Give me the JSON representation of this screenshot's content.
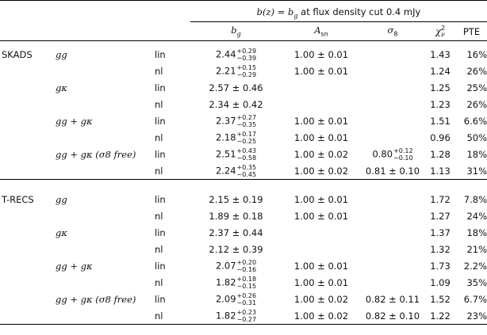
{
  "header": {
    "span_title_pre": "b(z) = b",
    "span_title_sub": "g",
    "span_title_post": " at flux density cut 0.4 mJy",
    "columns": {
      "bg": "b",
      "bg_sub": "g",
      "asn": "A",
      "asn_sub": "sn",
      "sigma8": "σ",
      "sigma8_sub": "8",
      "chi": "χ",
      "chi_sup": "2",
      "chi_sub": "ν",
      "pte": "PTE"
    }
  },
  "sections": [
    {
      "name": "SKADS",
      "rows": [
        {
          "model": "gg",
          "fit": "lin",
          "bg": {
            "v": "2.44",
            "up": "+0.29",
            "dn": "−0.39"
          },
          "asn": "1.00 ± 0.01",
          "sigma8": "",
          "chi": "1.43",
          "pte": "16%"
        },
        {
          "model": "",
          "fit": "nl",
          "bg": {
            "v": "2.21",
            "up": "+0.15",
            "dn": "−0.29"
          },
          "asn": "1.00 ± 0.01",
          "sigma8": "",
          "chi": "1.24",
          "pte": "26%"
        },
        {
          "model": "gκ",
          "fit": "lin",
          "bg": {
            "v": "2.57 ± 0.46"
          },
          "asn": "",
          "sigma8": "",
          "chi": "1.25",
          "pte": "25%"
        },
        {
          "model": "",
          "fit": "nl",
          "bg": {
            "v": "2.34 ± 0.42"
          },
          "asn": "",
          "sigma8": "",
          "chi": "1.23",
          "pte": "26%"
        },
        {
          "model": "gg + gκ",
          "fit": "lin",
          "bg": {
            "v": "2.37",
            "up": "+0.27",
            "dn": "−0.35"
          },
          "asn": "1.00 ± 0.01",
          "sigma8": "",
          "chi": "1.51",
          "pte": "6.6%"
        },
        {
          "model": "",
          "fit": "nl",
          "bg": {
            "v": "2.18",
            "up": "+0.17",
            "dn": "−0.25"
          },
          "asn": "1.00 ± 0.01",
          "sigma8": "",
          "chi": "0.96",
          "pte": "50%"
        },
        {
          "model": "gg + gκ (σ8 free)",
          "fit": "lin",
          "bg": {
            "v": "2.51",
            "up": "+0.43",
            "dn": "−0.58"
          },
          "asn": "1.00 ± 0.02",
          "sigma8": {
            "v": "0.80",
            "up": "+0.12",
            "dn": "−0.10"
          },
          "chi": "1.28",
          "pte": "18%"
        },
        {
          "model": "",
          "fit": "nl",
          "bg": {
            "v": "2.24",
            "up": "+0.35",
            "dn": "−0.45"
          },
          "asn": "1.00 ± 0.02",
          "sigma8": {
            "v": "0.81 ± 0.10"
          },
          "chi": "1.13",
          "pte": "31%"
        }
      ]
    },
    {
      "name": "T-RECS",
      "rows": [
        {
          "model": "gg",
          "fit": "lin",
          "bg": {
            "v": "2.15 ± 0.19"
          },
          "asn": "1.00 ± 0.01",
          "sigma8": "",
          "chi": "1.72",
          "pte": "7.8%"
        },
        {
          "model": "",
          "fit": "nl",
          "bg": {
            "v": "1.89 ± 0.18"
          },
          "asn": "1.00 ± 0.01",
          "sigma8": "",
          "chi": "1.27",
          "pte": "24%"
        },
        {
          "model": "gκ",
          "fit": "lin",
          "bg": {
            "v": "2.37 ± 0.44"
          },
          "asn": "",
          "sigma8": "",
          "chi": "1.37",
          "pte": "18%"
        },
        {
          "model": "",
          "fit": "nl",
          "bg": {
            "v": "2.12 ± 0.39"
          },
          "asn": "",
          "sigma8": "",
          "chi": "1.32",
          "pte": "21%"
        },
        {
          "model": "gg + gκ",
          "fit": "lin",
          "bg": {
            "v": "2.07",
            "up": "+0.20",
            "dn": "−0.16"
          },
          "asn": "1.00 ± 0.01",
          "sigma8": "",
          "chi": "1.73",
          "pte": "2.2%"
        },
        {
          "model": "",
          "fit": "nl",
          "bg": {
            "v": "1.82",
            "up": "+0.18",
            "dn": "−0.15"
          },
          "asn": "1.00 ± 0.01",
          "sigma8": "",
          "chi": "1.09",
          "pte": "35%"
        },
        {
          "model": "gg + gκ (σ8 free)",
          "fit": "lin",
          "bg": {
            "v": "2.09",
            "up": "+0.26",
            "dn": "−0.31"
          },
          "asn": "1.00 ± 0.02",
          "sigma8": {
            "v": "0.82 ± 0.11"
          },
          "chi": "1.52",
          "pte": "6.7%"
        },
        {
          "model": "",
          "fit": "nl",
          "bg": {
            "v": "1.82",
            "up": "+0.23",
            "dn": "−0.27"
          },
          "asn": "1.00 ± 0.02",
          "sigma8": {
            "v": "0.82 ± 0.10"
          },
          "chi": "1.22",
          "pte": "23%"
        }
      ]
    }
  ]
}
